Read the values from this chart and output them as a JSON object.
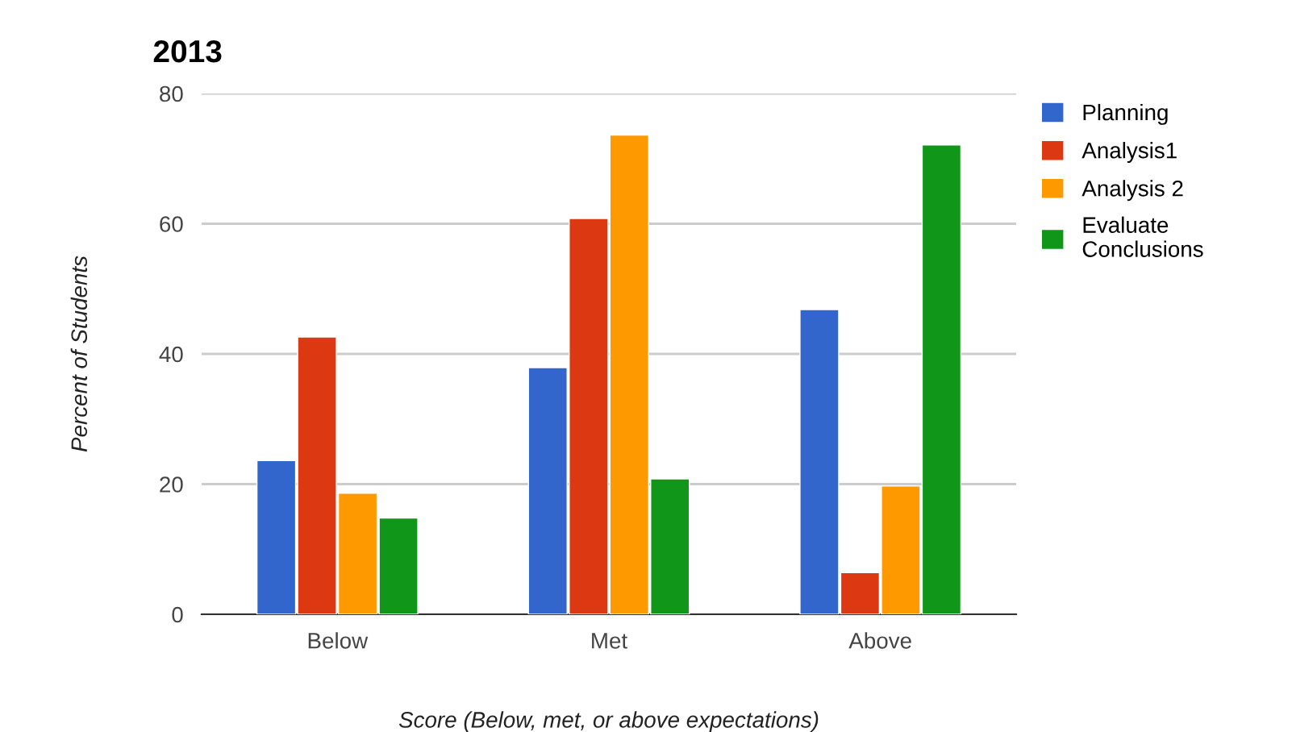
{
  "chart_data": {
    "type": "bar",
    "title": "2013",
    "xlabel": "Score (Below, met, or above expectations)",
    "ylabel": "Percent of Students",
    "categories": [
      "Below",
      "Met",
      "Above"
    ],
    "series": [
      {
        "name": "Planning",
        "color": "#3366cc",
        "values": [
          23.6,
          37.9,
          46.8
        ]
      },
      {
        "name": "Analysis1",
        "color": "#dc3912",
        "values": [
          42.6,
          60.8,
          6.4
        ]
      },
      {
        "name": "Analysis 2",
        "color": "#ff9900",
        "values": [
          18.6,
          73.6,
          19.7
        ]
      },
      {
        "name": "Evaluate Conclusions",
        "color": "#109618",
        "values": [
          14.8,
          20.8,
          72.1
        ]
      }
    ],
    "ylim": [
      0,
      80
    ],
    "yticks": [
      0,
      20,
      40,
      60,
      80
    ],
    "grid": "y",
    "legend": "right"
  }
}
